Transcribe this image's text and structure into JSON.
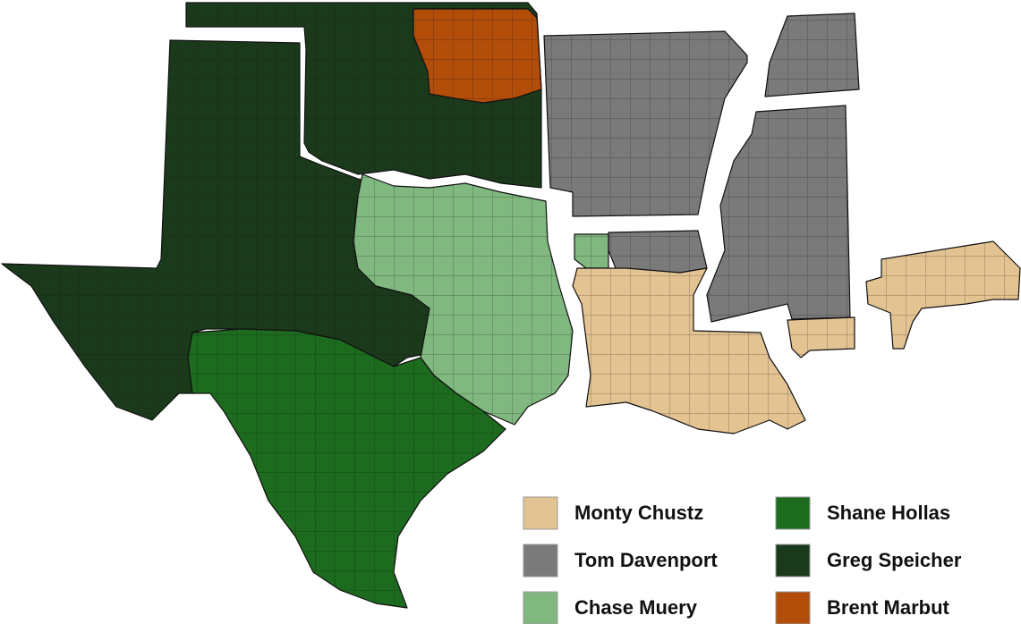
{
  "legend": [
    {
      "name": "Monty Chustz",
      "color": "#e3c392"
    },
    {
      "name": "Tom Davenport",
      "color": "#7a7a7a"
    },
    {
      "name": "Chase Muery",
      "color": "#80b87f"
    },
    {
      "name": "Shane Hollas",
      "color": "#1c6b1e"
    },
    {
      "name": "Greg Speicher",
      "color": "#1b3a1c"
    },
    {
      "name": "Brent Marbut",
      "color": "#b24d0a"
    }
  ]
}
